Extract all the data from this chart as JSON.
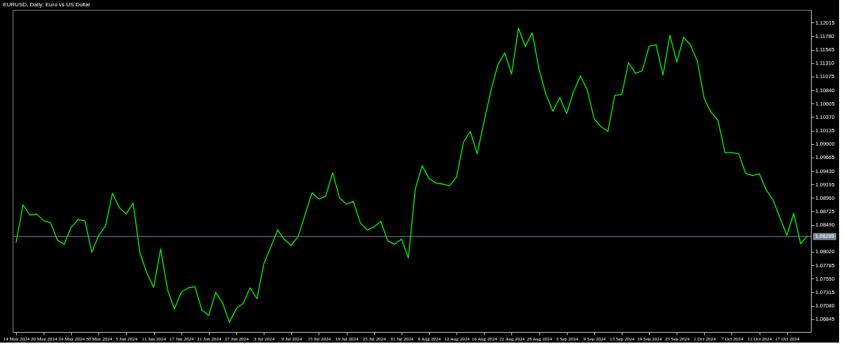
{
  "chart_data": {
    "type": "line",
    "title": "EURUSD, Daily: Euro vs US Dollar",
    "categories": [
      "14 May 2024",
      null,
      null,
      null,
      "20 May 2024",
      null,
      null,
      null,
      "24 May 2024",
      null,
      null,
      null,
      "30 May 2024",
      null,
      null,
      null,
      "5 Jun 2024",
      null,
      null,
      null,
      "11 Jun 2024",
      null,
      null,
      null,
      "17 Jun 2024",
      null,
      null,
      null,
      "21 Jun 2024",
      null,
      null,
      null,
      "27 Jun 2024",
      null,
      null,
      null,
      "3 Jul 2024",
      null,
      null,
      null,
      "9 Jul 2024",
      null,
      null,
      null,
      "15 Jul 2024",
      null,
      null,
      null,
      "19 Jul 2024",
      null,
      null,
      null,
      "25 Jul 2024",
      null,
      null,
      null,
      "31 Jul 2024",
      null,
      null,
      null,
      "6 Aug 2024",
      null,
      null,
      null,
      "12 Aug 2024",
      null,
      null,
      null,
      "16 Aug 2024",
      null,
      null,
      null,
      "22 Aug 2024",
      null,
      null,
      null,
      "28 Aug 2024",
      null,
      null,
      null,
      "3 Sep 2024",
      null,
      null,
      null,
      "9 Sep 2024",
      null,
      null,
      null,
      "13 Sep 2024",
      null,
      null,
      null,
      "19 Sep 2024",
      null,
      null,
      null,
      "25 Sep 2024",
      null,
      null,
      null,
      "1 Oct 2024",
      null,
      null,
      null,
      "7 Oct 2024",
      null,
      null,
      null,
      "11 Oct 2024",
      null,
      null,
      null,
      "17 Oct 2024",
      null,
      null,
      null
    ],
    "series": [
      {
        "color": "#00ff00",
        "values": [
          1.0818,
          1.0884,
          1.0866,
          1.0868,
          1.0856,
          1.0853,
          1.0822,
          1.0815,
          1.0845,
          1.0858,
          1.0856,
          1.0801,
          1.083,
          1.0847,
          1.0904,
          1.0879,
          1.0868,
          1.0887,
          1.08,
          1.0765,
          1.074,
          1.0807,
          1.0736,
          1.0702,
          1.0731,
          1.0739,
          1.0741,
          1.07,
          1.0691,
          1.0731,
          1.0713,
          1.0679,
          1.0703,
          1.0712,
          1.0739,
          1.072,
          1.0781,
          1.081,
          1.084,
          1.0823,
          1.0813,
          1.0829,
          1.0867,
          1.0905,
          1.0894,
          1.0899,
          1.094,
          1.0896,
          1.0885,
          1.089,
          1.0853,
          1.084,
          1.0845,
          1.0855,
          1.0821,
          1.0815,
          1.0824,
          1.0791,
          1.0911,
          1.0952,
          1.093,
          1.0922,
          1.092,
          1.0917,
          1.0932,
          1.0993,
          1.1012,
          1.0973,
          1.1029,
          1.1083,
          1.1128,
          1.1149,
          1.1112,
          1.1192,
          1.116,
          1.1184,
          1.112,
          1.1076,
          1.1047,
          1.1071,
          1.1043,
          1.1081,
          1.1109,
          1.1084,
          1.1034,
          1.102,
          1.1012,
          1.1075,
          1.1076,
          1.1132,
          1.1113,
          1.1118,
          1.1161,
          1.1163,
          1.111,
          1.118,
          1.1133,
          1.1176,
          1.1163,
          1.1134,
          1.1069,
          1.1045,
          1.1031,
          1.0975,
          1.0975,
          1.0973,
          1.0939,
          1.0935,
          1.0938,
          1.091,
          1.0892,
          1.0861,
          1.0831,
          1.0869,
          1.0816,
          1.083
        ]
      }
    ],
    "ylim": [
      1.0662,
      1.1224
    ],
    "yticks": [
      1.06845,
      {
        "value": 1.0708,
        "label": "1.07080"
      },
      1.07315,
      {
        "value": 1.0755,
        "label": "1.07550"
      },
      1.07785,
      {
        "value": 1.0802,
        "label": "1.08020"
      },
      {
        "value": 1.0849,
        "label": "1.08490"
      },
      1.08725,
      {
        "value": 1.0896,
        "label": "1.08960"
      },
      1.09195,
      {
        "value": 1.0943,
        "label": "1.09430"
      },
      1.09665,
      {
        "value": 1.099,
        "label": "1.09900"
      },
      1.10135,
      {
        "value": 1.1037,
        "label": "1.10370"
      },
      1.10605,
      {
        "value": 1.1084,
        "label": "1.10840"
      },
      1.11075,
      {
        "value": 1.1131,
        "label": "1.11310"
      },
      1.11545,
      {
        "value": 1.1178,
        "label": "1.11780"
      },
      1.12015
    ],
    "ref_lines": [
      {
        "axis": "y",
        "value": 1.08285,
        "label": "1.08285",
        "color": "#778899"
      }
    ],
    "grid": false,
    "marker": "none",
    "line_style": "solid"
  }
}
